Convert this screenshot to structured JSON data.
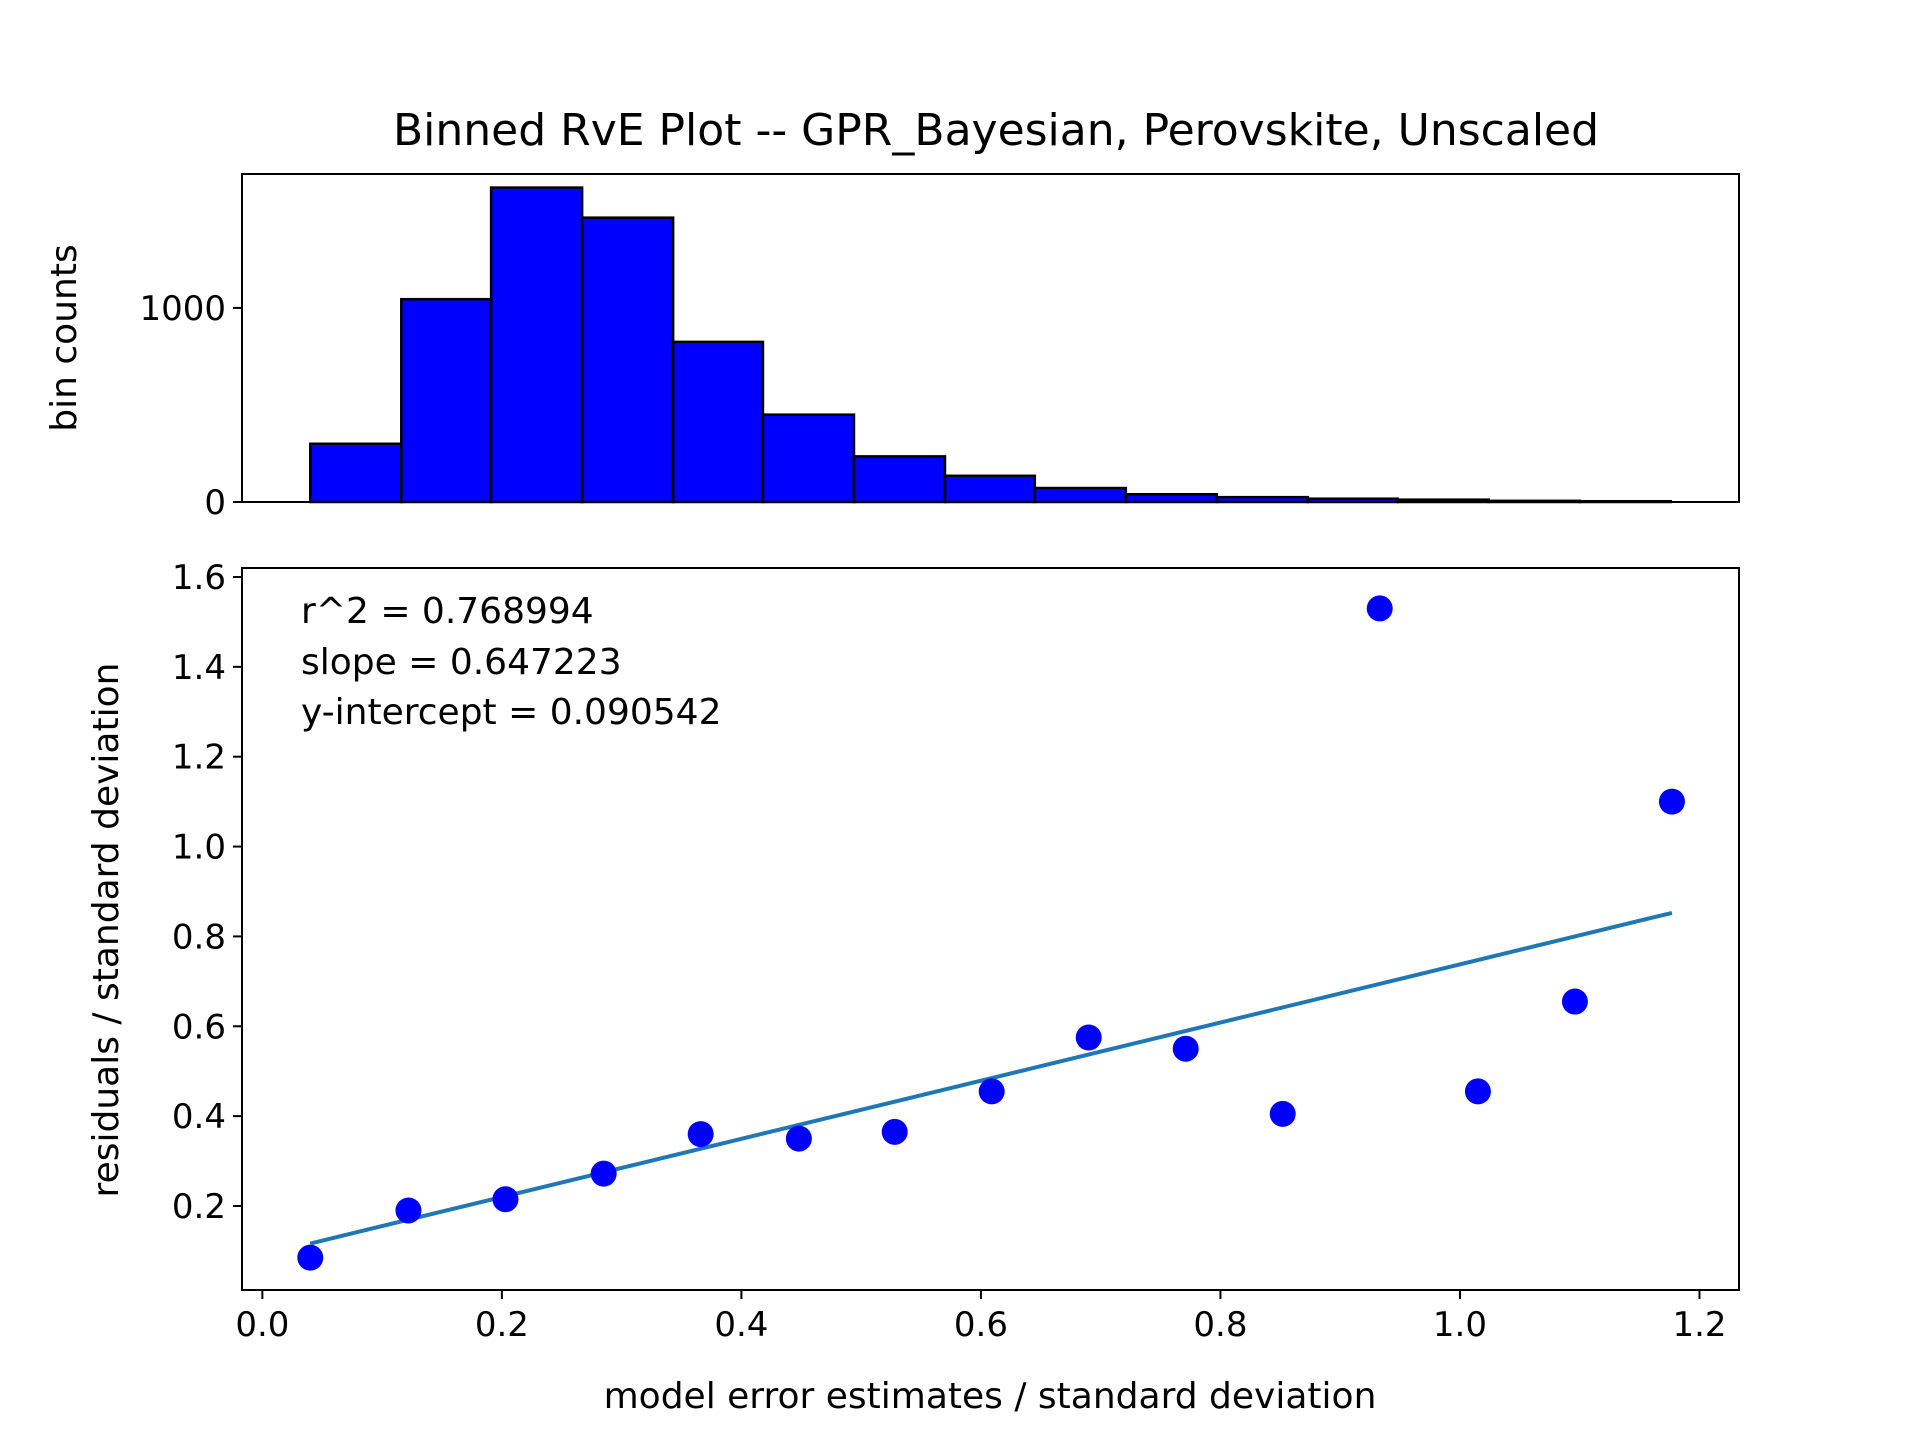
{
  "figure": {
    "title": "Binned RvE Plot -- GPR_Bayesian, Perovskite, Unscaled"
  },
  "chart_data": [
    {
      "type": "bar",
      "role": "histogram",
      "ylabel": "bin counts",
      "xlim": [
        -0.017,
        1.233
      ],
      "ylim": [
        0,
        1690
      ],
      "yticks": [
        0,
        1000
      ],
      "bin_edges": [
        0.04,
        0.116,
        0.191,
        0.267,
        0.343,
        0.418,
        0.494,
        0.57,
        0.645,
        0.721,
        0.797,
        0.873,
        0.948,
        1.024,
        1.1,
        1.176
      ],
      "values": [
        300,
        1045,
        1620,
        1465,
        825,
        450,
        235,
        135,
        72,
        40,
        25,
        17,
        12,
        6,
        4
      ],
      "bar_color": "#0000ff",
      "edge_color": "#000000"
    },
    {
      "type": "scatter",
      "xlabel": "model error estimates / standard deviation",
      "ylabel": "residuals / standard deviation",
      "xlim": [
        -0.017,
        1.233
      ],
      "ylim": [
        0.013,
        1.62
      ],
      "xticks": [
        "0.0",
        "0.2",
        "0.4",
        "0.6",
        "0.8",
        "1.0",
        "1.2"
      ],
      "yticks": [
        "0.2",
        "0.4",
        "0.6",
        "0.8",
        "1.0",
        "1.2",
        "1.4",
        "1.6"
      ],
      "points": [
        {
          "x": 0.04,
          "y": 0.085
        },
        {
          "x": 0.122,
          "y": 0.19
        },
        {
          "x": 0.203,
          "y": 0.215
        },
        {
          "x": 0.285,
          "y": 0.272
        },
        {
          "x": 0.366,
          "y": 0.36
        },
        {
          "x": 0.448,
          "y": 0.35
        },
        {
          "x": 0.528,
          "y": 0.365
        },
        {
          "x": 0.609,
          "y": 0.455
        },
        {
          "x": 0.69,
          "y": 0.575
        },
        {
          "x": 0.771,
          "y": 0.55
        },
        {
          "x": 0.852,
          "y": 0.405
        },
        {
          "x": 0.933,
          "y": 1.53
        },
        {
          "x": 1.015,
          "y": 0.455
        },
        {
          "x": 1.096,
          "y": 0.655
        },
        {
          "x": 1.177,
          "y": 1.1
        }
      ],
      "point_color": "#0000ff",
      "fit_line": {
        "x": [
          0.04,
          1.177
        ],
        "slope": 0.647223,
        "intercept": 0.090542,
        "color": "#1f77b4"
      },
      "annotations": [
        "r^2 = 0.768994",
        "slope = 0.647223",
        "y-intercept = 0.090542"
      ]
    }
  ]
}
